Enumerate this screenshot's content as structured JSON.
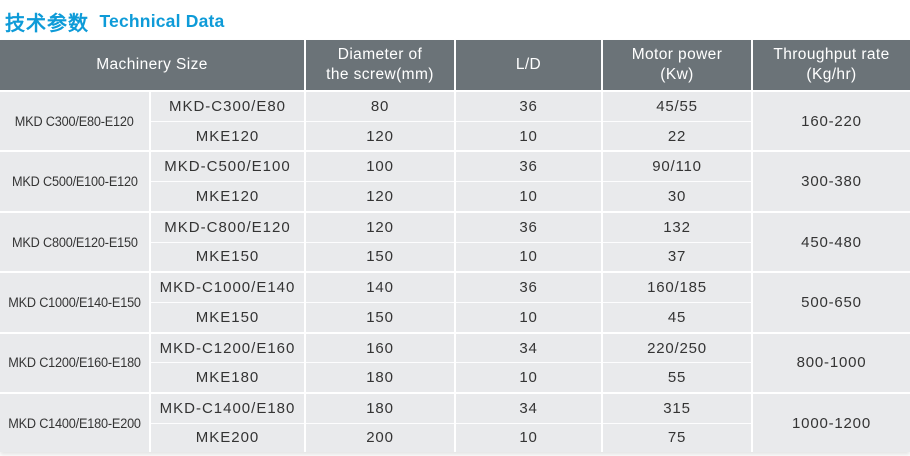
{
  "page_title": {
    "zh": "技术参数",
    "en": "Technical Data"
  },
  "colors": {
    "accent_blue": "#0e9bd8",
    "header_gray": "#6b7378",
    "row_background": "#e9eaec",
    "body_text": "#343434",
    "divider_white": "#ffffff"
  },
  "table": {
    "headers": {
      "machinery_size": "Machinery Size",
      "diameter_line1": "Diameter of",
      "diameter_line2": "the screw(mm)",
      "ld": "L/D",
      "motor_line1": "Motor power",
      "motor_line2": "(Kw)",
      "throughput_line1": "Throughput rate",
      "throughput_line2": "(Kg/hr)"
    },
    "groups": [
      {
        "size": "MKD C300/E80-E120",
        "throughput": "160-220",
        "rows": [
          {
            "model": "MKD-C300/E80",
            "diameter": "80",
            "ld": "36",
            "motor": "45/55"
          },
          {
            "model": "MKE120",
            "diameter": "120",
            "ld": "10",
            "motor": "22"
          }
        ]
      },
      {
        "size": "MKD C500/E100-E120",
        "throughput": "300-380",
        "rows": [
          {
            "model": "MKD-C500/E100",
            "diameter": "100",
            "ld": "36",
            "motor": "90/110"
          },
          {
            "model": "MKE120",
            "diameter": "120",
            "ld": "10",
            "motor": "30"
          }
        ]
      },
      {
        "size": "MKD C800/E120-E150",
        "throughput": "450-480",
        "rows": [
          {
            "model": "MKD-C800/E120",
            "diameter": "120",
            "ld": "36",
            "motor": "132"
          },
          {
            "model": "MKE150",
            "diameter": "150",
            "ld": "10",
            "motor": "37"
          }
        ]
      },
      {
        "size": "MKD C1000/E140-E150",
        "throughput": "500-650",
        "rows": [
          {
            "model": "MKD-C1000/E140",
            "diameter": "140",
            "ld": "36",
            "motor": "160/185"
          },
          {
            "model": "MKE150",
            "diameter": "150",
            "ld": "10",
            "motor": "45"
          }
        ]
      },
      {
        "size": "MKD C1200/E160-E180",
        "throughput": "800-1000",
        "rows": [
          {
            "model": "MKD-C1200/E160",
            "diameter": "160",
            "ld": "34",
            "motor": "220/250"
          },
          {
            "model": "MKE180",
            "diameter": "180",
            "ld": "10",
            "motor": "55"
          }
        ]
      },
      {
        "size": "MKD C1400/E180-E200",
        "throughput": "1000-1200",
        "rows": [
          {
            "model": "MKD-C1400/E180",
            "diameter": "180",
            "ld": "34",
            "motor": "315"
          },
          {
            "model": "MKE200",
            "diameter": "200",
            "ld": "10",
            "motor": "75"
          }
        ]
      }
    ]
  }
}
